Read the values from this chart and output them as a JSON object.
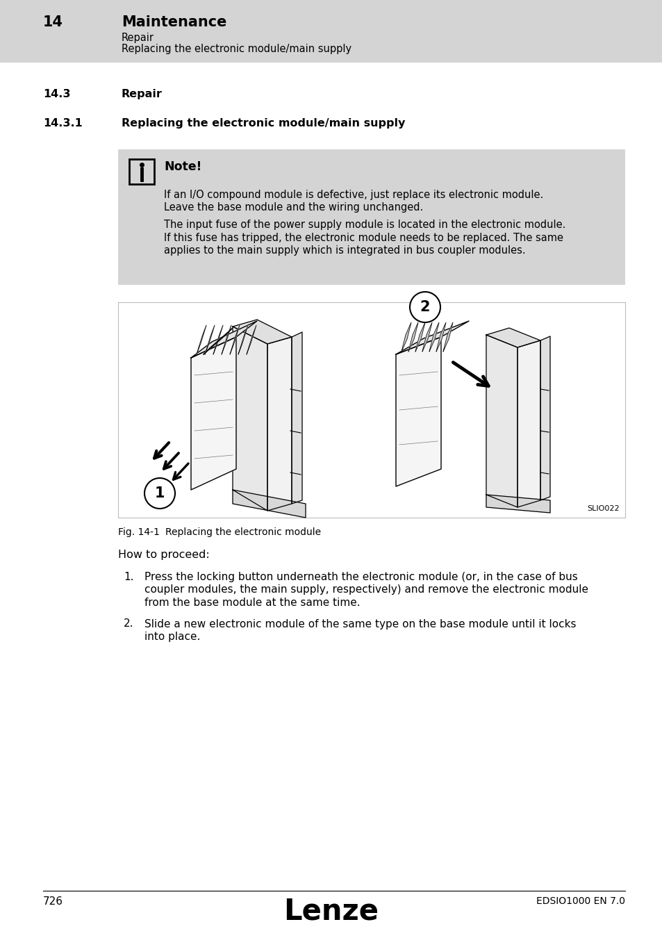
{
  "page_bg": "#ffffff",
  "header_bg": "#d4d4d4",
  "header_number": "14",
  "header_title": "Maintenance",
  "header_sub1": "Repair",
  "header_sub2": "Replacing the electronic module/main supply",
  "section_number": "14.3",
  "section_title": "Repair",
  "subsection_number": "14.3.1",
  "subsection_title": "Replacing the electronic module/main supply",
  "note_bg": "#d4d4d4",
  "note_title": "Note!",
  "note_line1": "If an I/O compound module is defective, just replace its electronic module.",
  "note_line2": "Leave the base module and the wiring unchanged.",
  "note_line3": "The input fuse of the power supply module is located in the electronic module.",
  "note_line4": "If this fuse has tripped, the electronic module needs to be replaced. The same",
  "note_line5": "applies to the main supply which is integrated in bus coupler modules.",
  "fig_caption_label": "Fig. 14-1",
  "fig_caption_text": "Replacing the electronic module",
  "fig_ref": "SLIO022",
  "proceed_title": "How to proceed:",
  "step1_num": "1.",
  "step1_line1": "Press the locking button underneath the electronic module (or, in the case of bus",
  "step1_line2": "coupler modules, the main supply, respectively) and remove the electronic module",
  "step1_line3": "from the base module at the same time.",
  "step2_num": "2.",
  "step2_line1": "Slide a new electronic module of the same type on the base module until it locks",
  "step2_line2": "into place.",
  "footer_page": "726",
  "footer_logo": "Lenze",
  "footer_doc": "EDSIO1000 EN 7.0"
}
